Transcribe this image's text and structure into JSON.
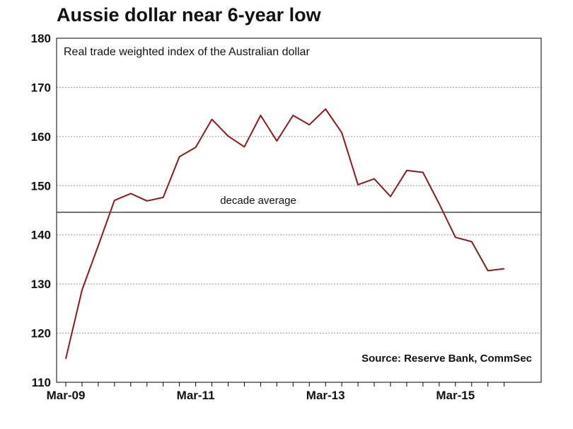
{
  "chart_data": {
    "type": "line",
    "title": "Aussie dollar near 6-year low",
    "subtitle": "Real trade weighted index of the Australian dollar",
    "source": "Source: Reserve Bank, CommSec",
    "ylim": [
      110,
      180
    ],
    "yticks": [
      110,
      120,
      130,
      140,
      150,
      160,
      170,
      180
    ],
    "xticks": [
      "Mar-09",
      "Mar-11",
      "Mar-13",
      "Mar-15"
    ],
    "grid": true,
    "reference_line": {
      "label": "decade average",
      "value": 144.6
    },
    "series": [
      {
        "color": "#8b1a1a",
        "x": [
          "Mar-09",
          "Jun-09",
          "Sep-09",
          "Dec-09",
          "Mar-10",
          "Jun-10",
          "Sep-10",
          "Dec-10",
          "Mar-11",
          "Jun-11",
          "Sep-11",
          "Dec-11",
          "Mar-12",
          "Jun-12",
          "Sep-12",
          "Dec-12",
          "Mar-13",
          "Jun-13",
          "Sep-13",
          "Dec-13",
          "Mar-14",
          "Jun-14",
          "Sep-14",
          "Dec-14",
          "Mar-15",
          "Jun-15",
          "Sep-15",
          "Dec-15"
        ],
        "values": [
          114.8,
          128.8,
          137.8,
          147.0,
          148.4,
          146.9,
          147.6,
          155.9,
          157.8,
          163.5,
          160.1,
          157.9,
          164.3,
          159.1,
          164.3,
          162.4,
          165.6,
          160.8,
          150.2,
          151.4,
          147.8,
          153.1,
          152.7,
          146.3,
          139.5,
          138.6,
          132.7,
          133.1
        ]
      }
    ]
  }
}
